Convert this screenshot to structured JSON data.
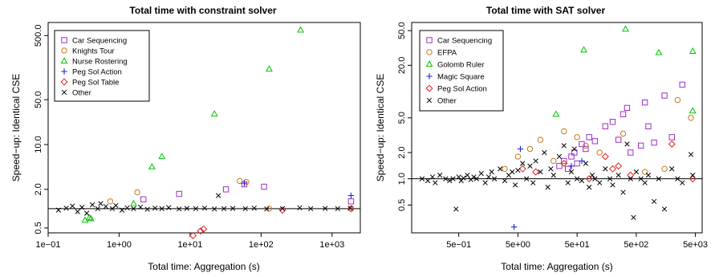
{
  "chart_data": [
    {
      "type": "scatter",
      "title": "Total time with constraint solver",
      "xlabel": "Total time: Aggregation (s)",
      "ylabel": "Speed−up: Identical CSE",
      "xscale": "log",
      "yscale": "log",
      "xlim": [
        0.1,
        2500
      ],
      "ylim": [
        0.42,
        800
      ],
      "xticks": [
        0.1,
        1,
        10,
        100,
        1000
      ],
      "xtick_labels": [
        "1e−01",
        "1e+00",
        "1e+01",
        "1e+02",
        "1e+03"
      ],
      "yticks": [
        0.5,
        2,
        10,
        50,
        500
      ],
      "ytick_labels": [
        "0.5",
        "2.0",
        "10.0",
        "50.0",
        "500.0"
      ],
      "reference_line_y": 1,
      "legend_position": "top-left",
      "series": [
        {
          "name": "Car Sequencing",
          "marker": "square",
          "color": "#9b30c8",
          "points": [
            [
              2.2,
              1.4
            ],
            [
              7,
              1.7
            ],
            [
              32,
              2
            ],
            [
              58,
              2.4
            ],
            [
              110,
              2.2
            ],
            [
              1850,
              1.3
            ]
          ]
        },
        {
          "name": "Knights Tour",
          "marker": "circle",
          "color": "#c8781e",
          "points": [
            [
              0.75,
              1.3
            ],
            [
              1.8,
              1.8
            ],
            [
              50,
              2.7
            ],
            [
              62,
              2.6
            ],
            [
              130,
              1.0
            ],
            [
              1850,
              1.0
            ]
          ]
        },
        {
          "name": "Nurse Rostering",
          "marker": "triangle",
          "color": "#00c800",
          "points": [
            [
              0.33,
              0.66
            ],
            [
              0.38,
              0.72
            ],
            [
              0.4,
              0.7
            ],
            [
              1.6,
              1.2
            ],
            [
              2.9,
              4.5
            ],
            [
              4,
              6.5
            ],
            [
              22,
              30
            ],
            [
              130,
              150
            ],
            [
              360,
              610
            ]
          ]
        },
        {
          "name": "Peg Sol Action",
          "marker": "plus",
          "color": "#2222dd",
          "points": [
            [
              58,
              2.5
            ],
            [
              1850,
              1.6
            ]
          ]
        },
        {
          "name": "Peg Sol Table",
          "marker": "diamond",
          "color": "#e02020",
          "points": [
            [
              11,
              0.38
            ],
            [
              14,
              0.45
            ],
            [
              15.5,
              0.48
            ],
            [
              200,
              0.95
            ],
            [
              1850,
              1.0
            ]
          ]
        },
        {
          "name": "Other",
          "marker": "x",
          "color": "#000000",
          "points": [
            [
              0.14,
              0.95
            ],
            [
              0.18,
              1.02
            ],
            [
              0.22,
              1.1
            ],
            [
              0.26,
              0.9
            ],
            [
              0.3,
              1.05
            ],
            [
              0.35,
              0.85
            ],
            [
              0.42,
              1.15
            ],
            [
              0.5,
              1.0
            ],
            [
              0.55,
              1.2
            ],
            [
              0.65,
              1.08
            ],
            [
              0.8,
              1.0
            ],
            [
              0.9,
              1.12
            ],
            [
              1.1,
              0.95
            ],
            [
              1.3,
              1.03
            ],
            [
              1.6,
              1.0
            ],
            [
              2,
              1.06
            ],
            [
              2.5,
              0.98
            ],
            [
              3.2,
              1.02
            ],
            [
              4,
              1.0
            ],
            [
              5,
              1.04
            ],
            [
              7,
              0.99
            ],
            [
              9,
              1.01
            ],
            [
              12,
              1.0
            ],
            [
              16,
              1.02
            ],
            [
              22,
              0.99
            ],
            [
              25,
              1.6
            ],
            [
              30,
              1.0
            ],
            [
              40,
              1.01
            ],
            [
              60,
              1.0
            ],
            [
              80,
              1.02
            ],
            [
              120,
              0.99
            ],
            [
              200,
              1.0
            ],
            [
              350,
              1.03
            ],
            [
              500,
              1.0
            ],
            [
              800,
              1.01
            ],
            [
              1200,
              1.0
            ],
            [
              1800,
              1.02
            ]
          ]
        }
      ]
    },
    {
      "type": "scatter",
      "title": "Total time with SAT solver",
      "xlabel": "Total time: Aggregation (s)",
      "ylabel": "Speed−up: Identical CSE",
      "xscale": "log",
      "yscale": "log",
      "xlim": [
        0.08,
        6500
      ],
      "ylim": [
        0.24,
        62
      ],
      "xticks": [
        0.5,
        5,
        50,
        500,
        5000
      ],
      "xtick_labels": [
        "5e−01",
        "5e+00",
        "5e+01",
        "5e+02",
        "5e+03"
      ],
      "yticks": [
        0.5,
        1,
        2,
        5,
        20,
        50
      ],
      "ytick_labels": [
        "0.5",
        "1.0",
        "2.0",
        "5.0",
        "20.0",
        "50.0"
      ],
      "reference_line_y": 1,
      "legend_position": "top-left",
      "series": [
        {
          "name": "Car Sequencing",
          "marker": "square",
          "color": "#9b30c8",
          "points": [
            [
              25,
              1.4
            ],
            [
              30,
              1.6
            ],
            [
              35,
              1.3
            ],
            [
              40,
              1.8
            ],
            [
              45,
              2.0
            ],
            [
              50,
              1.5
            ],
            [
              60,
              2.5
            ],
            [
              70,
              2.2
            ],
            [
              80,
              3.0
            ],
            [
              100,
              2.7
            ],
            [
              150,
              4.0
            ],
            [
              200,
              4.5
            ],
            [
              250,
              2.8
            ],
            [
              300,
              5.5
            ],
            [
              350,
              6.5
            ],
            [
              400,
              2.0
            ],
            [
              600,
              2.4
            ],
            [
              700,
              7.5
            ],
            [
              800,
              4.0
            ],
            [
              1000,
              2.6
            ],
            [
              1500,
              9.0
            ],
            [
              2000,
              3.0
            ],
            [
              3000,
              12.0
            ]
          ]
        },
        {
          "name": "EFPA",
          "marker": "circle",
          "color": "#c8781e",
          "points": [
            [
              3,
              1.3
            ],
            [
              5,
              1.8
            ],
            [
              8,
              2.2
            ],
            [
              12,
              2.8
            ],
            [
              20,
              1.6
            ],
            [
              30,
              3.5
            ],
            [
              50,
              3.0
            ],
            [
              70,
              2.4
            ],
            [
              120,
              2.0
            ],
            [
              300,
              3.3
            ],
            [
              700,
              1.2
            ],
            [
              1500,
              1.3
            ],
            [
              2500,
              8.0
            ],
            [
              4200,
              5.0
            ]
          ]
        },
        {
          "name": "Golomb Ruler",
          "marker": "triangle",
          "color": "#00c800",
          "points": [
            [
              22,
              5.5
            ],
            [
              65,
              30
            ],
            [
              330,
              52
            ],
            [
              1200,
              28
            ],
            [
              4500,
              29
            ],
            [
              4500,
              6.0
            ]
          ]
        },
        {
          "name": "Magic Square",
          "marker": "plus",
          "color": "#2222dd",
          "points": [
            [
              4.3,
              0.28
            ],
            [
              5.5,
              2.2
            ],
            [
              40,
              1.4
            ],
            [
              60,
              1.6
            ]
          ]
        },
        {
          "name": "Peg Sol Action",
          "marker": "diamond",
          "color": "#e02020",
          "points": [
            [
              6,
              1.3
            ],
            [
              10,
              1.2
            ],
            [
              30,
              1.5
            ],
            [
              80,
              1.0
            ],
            [
              150,
              1.8
            ],
            [
              200,
              1.3
            ],
            [
              250,
              1.4
            ],
            [
              400,
              1.1
            ],
            [
              2000,
              2.5
            ],
            [
              4500,
              1.0
            ]
          ]
        },
        {
          "name": "Other",
          "marker": "x",
          "color": "#000000",
          "points": [
            [
              0.12,
              1.0
            ],
            [
              0.15,
              0.95
            ],
            [
              0.18,
              1.05
            ],
            [
              0.2,
              0.9
            ],
            [
              0.24,
              1.1
            ],
            [
              0.3,
              1.0
            ],
            [
              0.35,
              0.95
            ],
            [
              0.4,
              1.0
            ],
            [
              0.45,
              0.45
            ],
            [
              0.5,
              1.05
            ],
            [
              0.55,
              0.95
            ],
            [
              0.6,
              1.02
            ],
            [
              0.7,
              1.1
            ],
            [
              0.8,
              0.98
            ],
            [
              0.9,
              1.05
            ],
            [
              1.0,
              1.0
            ],
            [
              1.2,
              1.15
            ],
            [
              1.4,
              0.9
            ],
            [
              1.6,
              1.05
            ],
            [
              1.8,
              1.2
            ],
            [
              2,
              1.0
            ],
            [
              2.5,
              1.3
            ],
            [
              3,
              0.95
            ],
            [
              3.5,
              1.1
            ],
            [
              4,
              1.2
            ],
            [
              4.5,
              0.85
            ],
            [
              5,
              1.25
            ],
            [
              6,
              1.5
            ],
            [
              7,
              1.0
            ],
            [
              8,
              1.4
            ],
            [
              9,
              0.9
            ],
            [
              10,
              1.6
            ],
            [
              12,
              1.2
            ],
            [
              14,
              2.0
            ],
            [
              16,
              0.8
            ],
            [
              18,
              1.3
            ],
            [
              20,
              1.1
            ],
            [
              25,
              1.8
            ],
            [
              30,
              2.4
            ],
            [
              35,
              0.9
            ],
            [
              40,
              1.2
            ],
            [
              45,
              2.2
            ],
            [
              50,
              1.0
            ],
            [
              60,
              0.95
            ],
            [
              70,
              1.5
            ],
            [
              80,
              0.8
            ],
            [
              90,
              1.1
            ],
            [
              100,
              1.0
            ],
            [
              120,
              0.9
            ],
            [
              150,
              1.3
            ],
            [
              180,
              1.0
            ],
            [
              200,
              0.85
            ],
            [
              250,
              1.1
            ],
            [
              300,
              0.7
            ],
            [
              350,
              2.5
            ],
            [
              400,
              1.0
            ],
            [
              450,
              0.36
            ],
            [
              500,
              1.2
            ],
            [
              600,
              1.0
            ],
            [
              700,
              0.9
            ],
            [
              800,
              1.1
            ],
            [
              1000,
              0.55
            ],
            [
              1200,
              1.0
            ],
            [
              1500,
              0.45
            ],
            [
              2000,
              1.3
            ],
            [
              2500,
              1.0
            ],
            [
              3000,
              0.9
            ],
            [
              4200,
              1.9
            ],
            [
              4500,
              1.1
            ]
          ]
        }
      ]
    }
  ]
}
